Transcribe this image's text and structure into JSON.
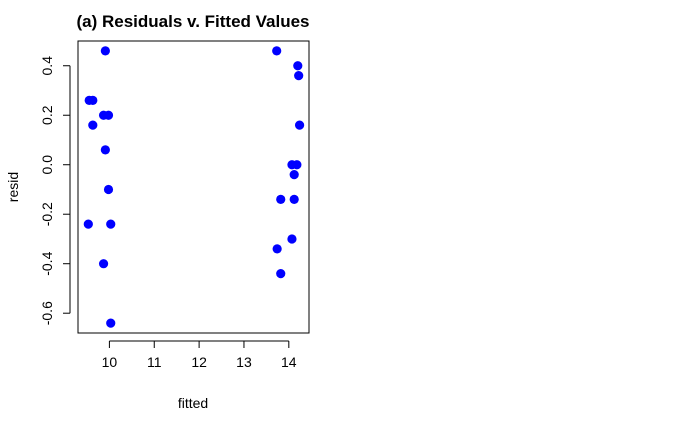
{
  "chart_data": {
    "type": "scatter",
    "title": "(a) Residuals v. Fitted Values",
    "xlabel": "fitted",
    "ylabel": "resid",
    "xlim": [
      9.3,
      14.45
    ],
    "ylim": [
      -0.68,
      0.5
    ],
    "x_ticks": [
      10,
      11,
      12,
      13,
      14
    ],
    "y_ticks": [
      -0.6,
      -0.4,
      -0.2,
      0.0,
      0.2,
      0.4
    ],
    "y_tick_labels": [
      "-0.6",
      "-0.4",
      "-0.2",
      "0.0",
      "0.2",
      "0.4"
    ],
    "grid": false,
    "marker_color": "#0000ff",
    "points": [
      {
        "x": 9.53,
        "y": -0.24
      },
      {
        "x": 9.55,
        "y": 0.26
      },
      {
        "x": 9.63,
        "y": 0.26
      },
      {
        "x": 9.63,
        "y": 0.16
      },
      {
        "x": 9.87,
        "y": 0.2
      },
      {
        "x": 9.87,
        "y": -0.4
      },
      {
        "x": 9.91,
        "y": 0.46
      },
      {
        "x": 9.91,
        "y": 0.06
      },
      {
        "x": 9.98,
        "y": -0.1
      },
      {
        "x": 9.98,
        "y": 0.2
      },
      {
        "x": 10.03,
        "y": -0.24
      },
      {
        "x": 10.03,
        "y": -0.64
      },
      {
        "x": 13.73,
        "y": 0.46
      },
      {
        "x": 13.74,
        "y": -0.34
      },
      {
        "x": 13.82,
        "y": -0.14
      },
      {
        "x": 13.82,
        "y": -0.44
      },
      {
        "x": 14.07,
        "y": 0.0
      },
      {
        "x": 14.07,
        "y": -0.3
      },
      {
        "x": 14.12,
        "y": -0.04
      },
      {
        "x": 14.12,
        "y": -0.14
      },
      {
        "x": 14.18,
        "y": 0.0
      },
      {
        "x": 14.2,
        "y": 0.4
      },
      {
        "x": 14.22,
        "y": 0.36
      },
      {
        "x": 14.24,
        "y": 0.16
      }
    ]
  }
}
